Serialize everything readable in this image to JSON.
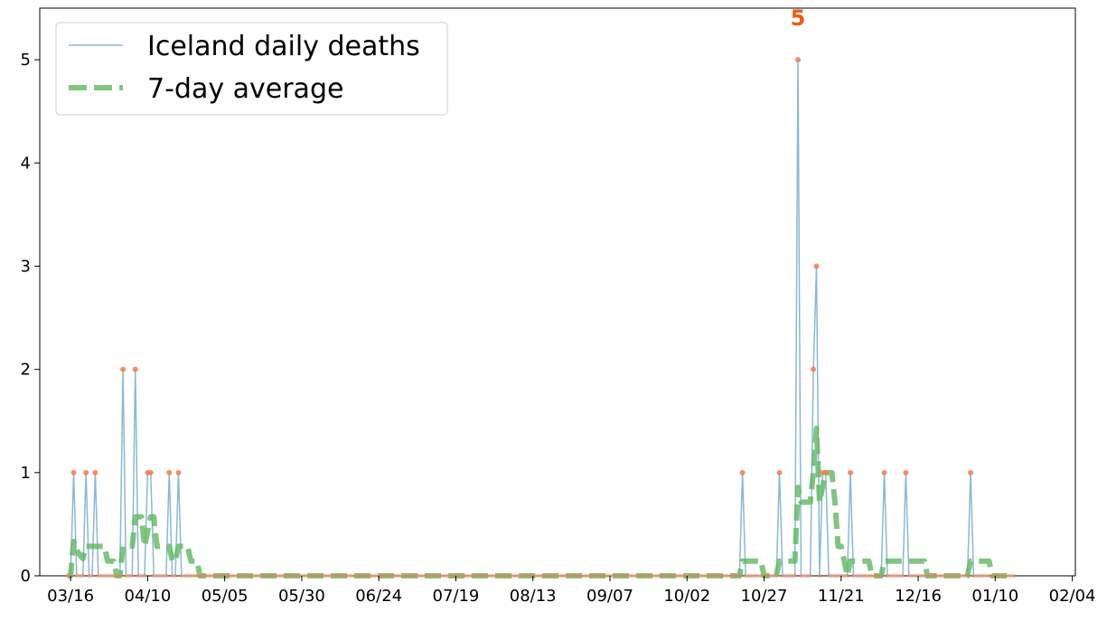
{
  "chart_data": {
    "type": "line",
    "title": "",
    "xlabel": "",
    "ylabel": "",
    "x_start": "2020-03-15",
    "x_end": "2021-01-16",
    "xlim": [
      "2020-03-06",
      "2021-02-05"
    ],
    "ylim": [
      0,
      5.5
    ],
    "grid": false,
    "legend_position": "top-left",
    "x_ticks": [
      "03/16",
      "04/10",
      "05/05",
      "05/30",
      "06/24",
      "07/19",
      "08/13",
      "09/07",
      "10/02",
      "10/27",
      "11/21",
      "12/16",
      "01/10",
      "02/04"
    ],
    "y_ticks": [
      "0",
      "1",
      "2",
      "3",
      "4",
      "5"
    ],
    "colors": {
      "daily": "#8ab8d6",
      "average": "#5fb85f",
      "points": "#f07e50",
      "annotation": "#f05a14"
    },
    "series": [
      {
        "name": "Iceland daily deaths",
        "style": "line",
        "nonzero": {
          "2020-03-17": 1,
          "2020-03-21": 1,
          "2020-03-24": 1,
          "2020-04-02": 2,
          "2020-04-06": 2,
          "2020-04-10": 1,
          "2020-04-11": 1,
          "2020-04-17": 1,
          "2020-04-20": 1,
          "2020-10-20": 1,
          "2020-11-01": 1,
          "2020-11-07": 5,
          "2020-11-12": 2,
          "2020-11-13": 3,
          "2020-11-15": 1,
          "2020-11-16": 1,
          "2020-11-24": 1,
          "2020-12-05": 1,
          "2020-12-12": 1,
          "2021-01-02": 1
        },
        "default_value": 0
      },
      {
        "name": "7-day average",
        "style": "dashed",
        "derived": "7-day rolling mean of daily deaths"
      }
    ],
    "annotations": [
      {
        "text": "5",
        "x": "2020-11-07",
        "y": 5
      }
    ]
  }
}
